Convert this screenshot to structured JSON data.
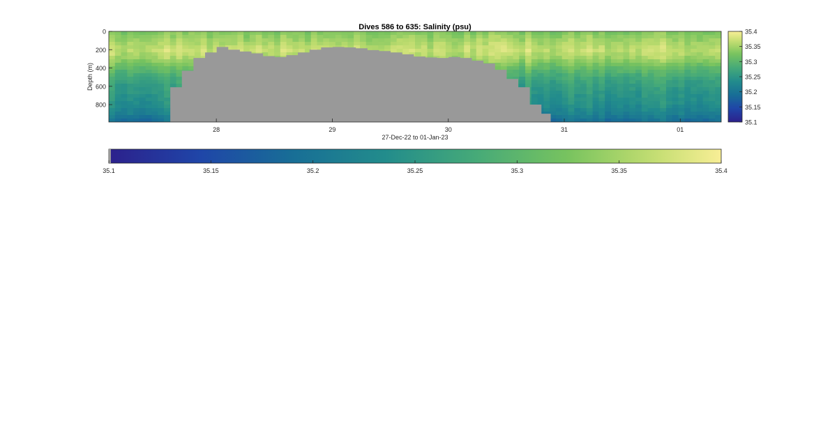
{
  "chart_data": {
    "type": "heatmap",
    "title": "Dives 586 to 635: Salinity (psu)",
    "xlabel": "27-Dec-22 to 01-Jan-23",
    "ylabel": "Depth (m)",
    "x_ticks": [
      "28",
      "29",
      "30",
      "31",
      "01"
    ],
    "x_tick_positions_days": [
      0.927,
      1.927,
      2.927,
      3.927,
      4.927
    ],
    "xlim_days": [
      0,
      5.28
    ],
    "y_ticks": [
      0,
      200,
      400,
      600,
      800
    ],
    "ylim": [
      0,
      990
    ],
    "y_reversed": true,
    "colorbar": {
      "ticks": [
        35.1,
        35.15,
        35.2,
        35.25,
        35.3,
        35.35,
        35.4
      ],
      "tick_labels": [
        "35.1",
        "35.15",
        "35.2",
        "35.25",
        "35.3",
        "35.35",
        "35.4"
      ],
      "range": [
        35.1,
        35.4
      ],
      "colormap": "parula"
    },
    "seafloor_color": "#999999",
    "seafloor_profile": {
      "x_days": [
        0.0,
        0.53,
        0.53,
        0.63,
        0.73,
        0.83,
        0.93,
        1.03,
        1.13,
        1.23,
        1.33,
        1.43,
        1.53,
        1.63,
        1.73,
        1.83,
        1.93,
        2.03,
        2.13,
        2.23,
        2.33,
        2.43,
        2.53,
        2.63,
        2.73,
        2.83,
        2.93,
        3.03,
        3.13,
        3.23,
        3.33,
        3.43,
        3.53,
        3.63,
        3.73,
        3.81,
        3.81,
        5.28
      ],
      "depth_m": [
        990,
        990,
        610,
        430,
        290,
        230,
        170,
        200,
        220,
        240,
        270,
        280,
        260,
        230,
        200,
        175,
        170,
        175,
        185,
        205,
        215,
        230,
        250,
        275,
        285,
        290,
        280,
        290,
        320,
        350,
        420,
        520,
        610,
        800,
        900,
        990,
        990,
        990
      ]
    },
    "salinity_profile": {
      "depth_m": [
        0,
        100,
        200,
        300,
        400,
        500,
        600,
        700,
        800,
        900,
        990
      ],
      "salinity_psu": [
        35.33,
        35.35,
        35.37,
        35.35,
        35.31,
        35.28,
        35.26,
        35.25,
        35.24,
        35.22,
        35.19
      ]
    }
  }
}
